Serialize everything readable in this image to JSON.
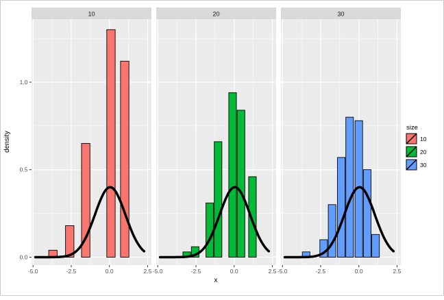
{
  "chart_data": {
    "type": "bar",
    "subtype": "faceted-histogram-with-density-curve",
    "title": "",
    "xlabel": "x",
    "ylabel": "density",
    "xlim": [
      -5.1,
      2.75
    ],
    "ylim": [
      -0.045,
      1.36
    ],
    "x_ticks": [
      -5.0,
      -2.5,
      0.0,
      2.5
    ],
    "x_tick_labels": [
      "-5.0",
      "-2.5",
      "0.0",
      "2.5"
    ],
    "x_minor": [
      -3.75,
      -1.25,
      1.25
    ],
    "y_ticks": [
      0.0,
      0.5,
      1.0
    ],
    "y_tick_labels": [
      "0.0",
      "0.5",
      "1.0"
    ],
    "y_minor": [
      0.25,
      0.75,
      1.25
    ],
    "legend": {
      "title": "size",
      "position": "right"
    },
    "grid": "on",
    "colors": {
      "panel_bg": "#EBEBEB",
      "strip_bg": "#D9D9D9",
      "grid": "#FFFFFF",
      "bar_outline": "#000000",
      "curve": "#000000",
      "tick": "#333333",
      "tick_label": "#4D4D4D"
    },
    "facets": [
      {
        "label": "10",
        "color": "#F8766D",
        "bin_width": 0.55,
        "bars": [
          {
            "x": -3.7,
            "density": 0.04
          },
          {
            "x": -2.6,
            "density": 0.18
          },
          {
            "x": -1.55,
            "density": 0.65
          },
          {
            "x": 0.1,
            "density": 1.3
          },
          {
            "x": 1.0,
            "density": 1.12
          }
        ]
      },
      {
        "label": "20",
        "color": "#00BA38",
        "bin_width": 0.5,
        "bars": [
          {
            "x": -3.1,
            "density": 0.03
          },
          {
            "x": -2.55,
            "density": 0.06
          },
          {
            "x": -1.6,
            "density": 0.31
          },
          {
            "x": -1.05,
            "density": 0.66
          },
          {
            "x": -0.1,
            "density": 0.94
          },
          {
            "x": 0.45,
            "density": 0.84
          },
          {
            "x": 1.2,
            "density": 0.46
          }
        ]
      },
      {
        "label": "30",
        "color": "#619CFF",
        "bin_width": 0.5,
        "bars": [
          {
            "x": -3.45,
            "density": 0.03
          },
          {
            "x": -2.3,
            "density": 0.1
          },
          {
            "x": -1.75,
            "density": 0.3
          },
          {
            "x": -1.15,
            "density": 0.57
          },
          {
            "x": -0.6,
            "density": 0.8
          },
          {
            "x": 0.0,
            "density": 0.78
          },
          {
            "x": 0.55,
            "density": 0.5
          },
          {
            "x": 1.1,
            "density": 0.13
          }
        ]
      }
    ],
    "density_curve": {
      "mean": 0.05,
      "sd": 1.0,
      "peak": 0.4,
      "x_from": -4.85,
      "x_to": 2.3
    }
  }
}
